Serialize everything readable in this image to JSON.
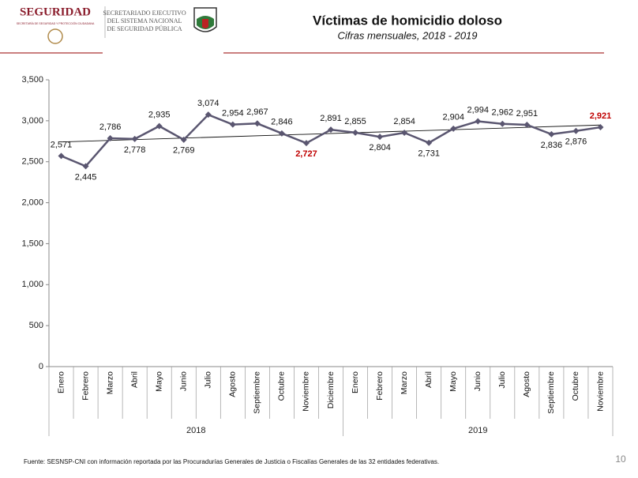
{
  "header": {
    "logo_title": "SEGURIDAD",
    "logo_subtitle": "SECRETARÍA DE SEGURIDAD Y PROTECCIÓN CIUDADANA",
    "agency_lines": [
      "SECRETARIADO EJECUTIVO",
      "DEL SISTEMA NACIONAL",
      "DE SEGURIDAD PÚBLICA"
    ]
  },
  "chart_data": {
    "type": "line",
    "title": "Víctimas de homicidio doloso",
    "subtitle": "Cifras mensuales, 2018 - 2019",
    "year_groups": [
      {
        "label": "2018",
        "months": [
          "Enero",
          "Febrero",
          "Marzo",
          "Abril",
          "Mayo",
          "Junio",
          "Julio",
          "Agosto",
          "Septiembre",
          "Octubre",
          "Noviembre",
          "Diciembre"
        ]
      },
      {
        "label": "2019",
        "months": [
          "Enero",
          "Febrero",
          "Marzo",
          "Abril",
          "Mayo",
          "Junio",
          "Julio",
          "Agosto",
          "Septiembre",
          "Octubre",
          "Noviembre"
        ]
      }
    ],
    "values": [
      2571,
      2445,
      2786,
      2778,
      2935,
      2769,
      3074,
      2954,
      2967,
      2846,
      2727,
      2891,
      2855,
      2804,
      2854,
      2731,
      2904,
      2994,
      2962,
      2951,
      2836,
      2876,
      2921
    ],
    "value_labels": [
      "2,571",
      "2,445",
      "2,786",
      "2,778",
      "2,935",
      "2,769",
      "3,074",
      "2,954",
      "2,967",
      "2,846",
      "2,727",
      "2,891",
      "2,855",
      "2,804",
      "2,854",
      "2,731",
      "2,904",
      "2,994",
      "2,962",
      "2,951",
      "2,836",
      "2,876",
      "2,921"
    ],
    "color": "#5a5670",
    "trendline": true,
    "highlight": {
      "color": "#c00000",
      "indices": [
        10,
        22
      ]
    },
    "ylim": [
      0,
      3500
    ],
    "yticks": [
      0,
      500,
      {
        "value": 1000,
        "label": "1,000"
      },
      {
        "value": 1500,
        "label": "1,500"
      },
      {
        "value": 2000,
        "label": "2,000"
      },
      {
        "value": 2500,
        "label": "2,500"
      },
      {
        "value": 3000,
        "label": "3,000"
      },
      {
        "value": 3500,
        "label": "3,500"
      }
    ],
    "source": "Fuente: SESNSP-CNI con información reportada por las Procuradurías Generales de Justicia o Fiscalías Generales de las 32 entidades federativas."
  },
  "page_number": "10"
}
